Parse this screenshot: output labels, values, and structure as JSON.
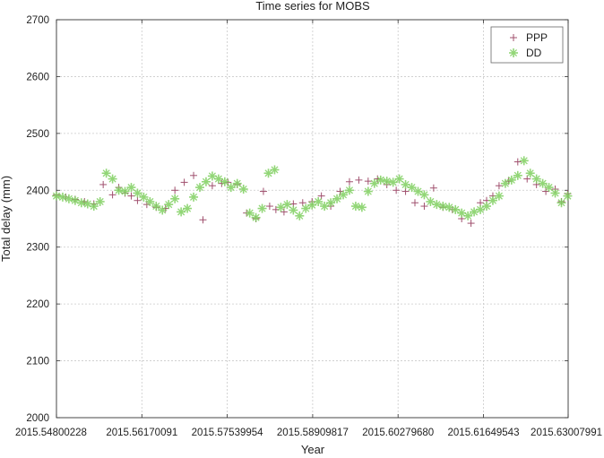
{
  "chart_data": {
    "type": "scatter",
    "title": "Time series for MOBS",
    "xlabel": "Year",
    "ylabel": "Total delay (mm)",
    "xlim": [
      2015.54800228,
      2015.63007991
    ],
    "ylim": [
      2000,
      2700
    ],
    "xticks": [
      "2015.54800228",
      "2015.56170091",
      "2015.57539954",
      "2015.58909817",
      "2015.60279680",
      "2015.61649543",
      "2015.63007991"
    ],
    "yticks": [
      2000,
      2100,
      2200,
      2300,
      2400,
      2500,
      2600,
      2700
    ],
    "grid": true,
    "legend_position": "top-right",
    "series_colors": {
      "PPP": "#a0506e",
      "DD": "#7fd060"
    },
    "series": [
      {
        "name": "PPP",
        "marker": "+",
        "x": [
          2015.548,
          2015.5495,
          2015.551,
          2015.5525,
          2015.554,
          2015.5555,
          2015.557,
          2015.558,
          2015.559,
          2015.56,
          2015.561,
          2015.5625,
          2015.564,
          2015.5655,
          2015.567,
          2015.5685,
          2015.57,
          2015.5715,
          2015.573,
          2015.5745,
          2015.5755,
          2015.577,
          2015.5785,
          2015.58,
          2015.5812,
          2015.5822,
          2015.5832,
          2015.5845,
          2015.586,
          2015.5875,
          2015.589,
          2015.5905,
          2015.592,
          2015.5935,
          2015.595,
          2015.5965,
          2015.598,
          2015.5995,
          2015.601,
          2015.6025,
          2015.604,
          2015.6055,
          2015.607,
          2015.6085,
          2015.61,
          2015.6115,
          2015.613,
          2015.6145,
          2015.616,
          2015.617,
          2015.618,
          2015.619,
          2015.6205,
          2015.622,
          2015.6235,
          2015.625,
          2015.6265,
          2015.628,
          2015.629,
          2015.63
        ],
        "y": [
          2392,
          2388,
          2384,
          2380,
          2376,
          2410,
          2392,
          2405,
          2395,
          2390,
          2382,
          2375,
          2370,
          2368,
          2400,
          2414,
          2426,
          2348,
          2408,
          2412,
          2414,
          2410,
          2360,
          2350,
          2398,
          2372,
          2366,
          2362,
          2376,
          2378,
          2380,
          2390,
          2372,
          2398,
          2415,
          2418,
          2416,
          2420,
          2410,
          2400,
          2398,
          2378,
          2372,
          2404,
          2370,
          2366,
          2350,
          2342,
          2378,
          2382,
          2390,
          2408,
          2416,
          2450,
          2420,
          2410,
          2398,
          2402,
          2380,
          2394
        ]
      },
      {
        "name": "DD",
        "marker": "*",
        "x": [
          2015.548,
          2015.549,
          2015.55,
          2015.551,
          2015.552,
          2015.553,
          2015.554,
          2015.555,
          2015.556,
          2015.557,
          2015.558,
          2015.559,
          2015.56,
          2015.561,
          2015.562,
          2015.563,
          2015.564,
          2015.565,
          2015.566,
          2015.567,
          2015.568,
          2015.569,
          2015.57,
          2015.571,
          2015.572,
          2015.573,
          2015.574,
          2015.575,
          2015.576,
          2015.577,
          2015.578,
          2015.579,
          2015.58,
          2015.581,
          2015.582,
          2015.583,
          2015.584,
          2015.585,
          2015.586,
          2015.587,
          2015.588,
          2015.589,
          2015.59,
          2015.591,
          2015.592,
          2015.593,
          2015.594,
          2015.595,
          2015.596,
          2015.597,
          2015.598,
          2015.599,
          2015.6,
          2015.601,
          2015.602,
          2015.603,
          2015.604,
          2015.605,
          2015.606,
          2015.607,
          2015.608,
          2015.609,
          2015.61,
          2015.611,
          2015.612,
          2015.613,
          2015.614,
          2015.615,
          2015.616,
          2015.617,
          2015.618,
          2015.619,
          2015.62,
          2015.621,
          2015.622,
          2015.623,
          2015.624,
          2015.625,
          2015.626,
          2015.627,
          2015.628,
          2015.629,
          2015.63
        ],
        "y": [
          2390,
          2388,
          2385,
          2382,
          2378,
          2376,
          2372,
          2380,
          2430,
          2420,
          2400,
          2398,
          2405,
          2395,
          2388,
          2380,
          2372,
          2365,
          2375,
          2385,
          2362,
          2368,
          2388,
          2405,
          2415,
          2425,
          2420,
          2415,
          2405,
          2412,
          2402,
          2360,
          2352,
          2368,
          2430,
          2436,
          2370,
          2375,
          2365,
          2355,
          2368,
          2374,
          2380,
          2372,
          2378,
          2385,
          2392,
          2400,
          2372,
          2370,
          2398,
          2412,
          2418,
          2416,
          2414,
          2420,
          2410,
          2405,
          2398,
          2392,
          2380,
          2375,
          2372,
          2370,
          2366,
          2360,
          2355,
          2362,
          2366,
          2372,
          2382,
          2390,
          2412,
          2418,
          2426,
          2452,
          2430,
          2420,
          2412,
          2405,
          2395,
          2378,
          2390
        ]
      }
    ]
  }
}
